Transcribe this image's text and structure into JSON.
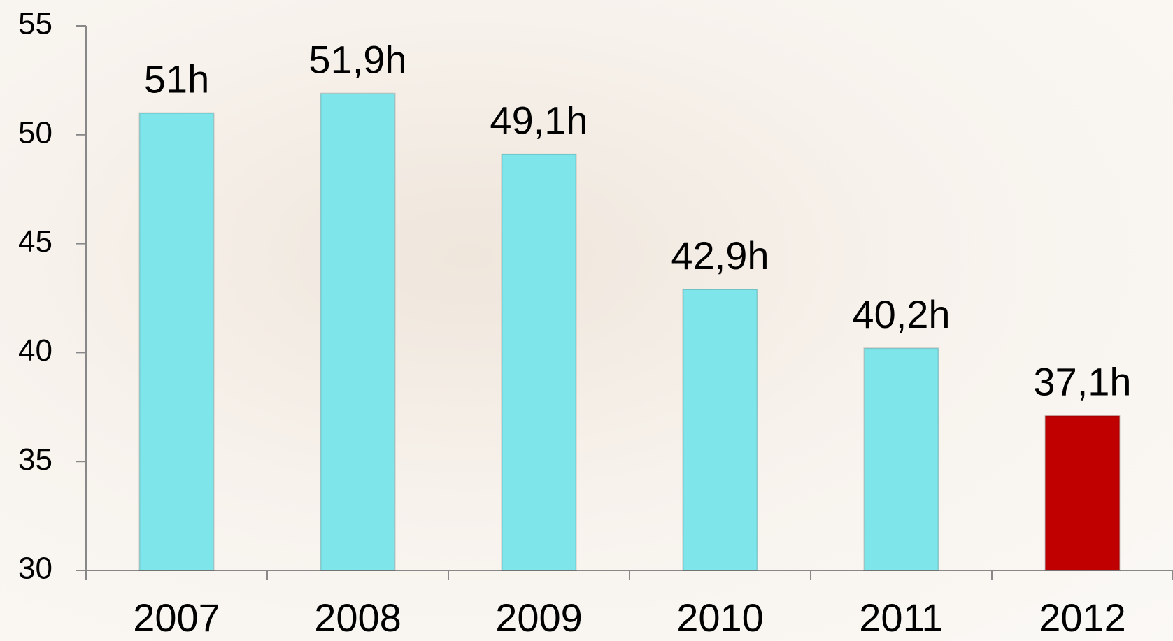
{
  "chart_data": {
    "type": "bar",
    "categories": [
      "2007",
      "2008",
      "2009",
      "2010",
      "2011",
      "2012"
    ],
    "values": [
      51,
      51.9,
      49.1,
      42.9,
      40.2,
      37.1
    ],
    "value_labels": [
      "51h",
      "51,9h",
      "49,1h",
      "42,9h",
      "40,2h",
      "37,1h"
    ],
    "colors": [
      "#7ee6ea",
      "#7ee6ea",
      "#7ee6ea",
      "#7ee6ea",
      "#7ee6ea",
      "#c00000"
    ],
    "ylim": [
      30,
      55
    ],
    "yticks": [
      30,
      35,
      40,
      45,
      50,
      55
    ],
    "grid": false
  }
}
